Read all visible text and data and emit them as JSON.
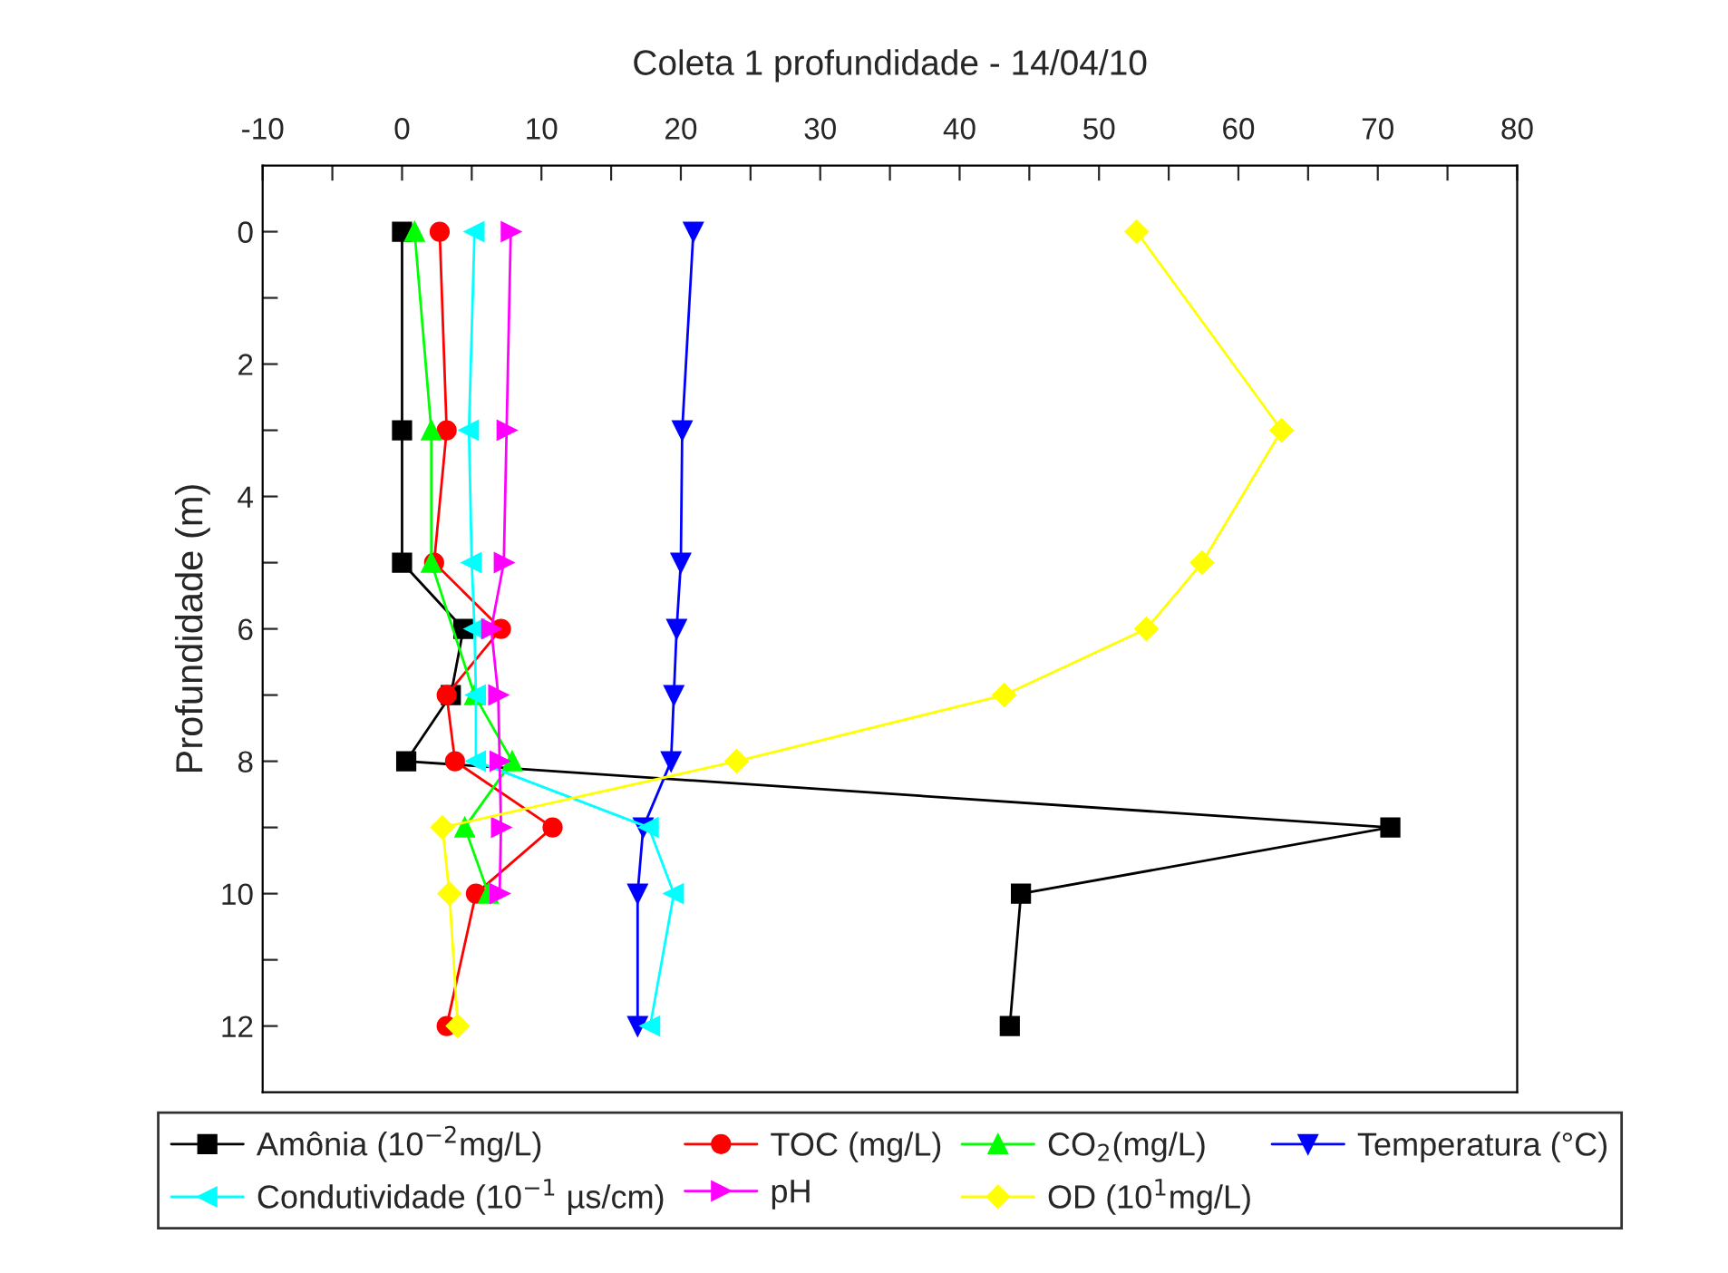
{
  "chart_data": {
    "type": "line",
    "title": "Coleta 1 profundidade - 14/04/10",
    "ylabel": "Profundidade (m)",
    "xlim": [
      -10,
      80
    ],
    "xticks": [
      -10,
      {
        "value": -5,
        "label": null
      },
      0,
      {
        "value": 5,
        "label": null
      },
      10,
      {
        "value": 15,
        "label": null
      },
      20,
      {
        "value": 25,
        "label": null
      },
      30,
      {
        "value": 35,
        "label": null
      },
      40,
      {
        "value": 45,
        "label": null
      },
      50,
      {
        "value": 55,
        "label": null
      },
      60,
      {
        "value": 65,
        "label": null
      },
      70,
      {
        "value": 75,
        "label": null
      },
      80
    ],
    "ylim": [
      13,
      -1
    ],
    "yticks": [
      0,
      {
        "value": 1,
        "label": null
      },
      2,
      {
        "value": 3,
        "label": null
      },
      4,
      {
        "value": 5,
        "label": null
      },
      6,
      {
        "value": 7,
        "label": null
      },
      8,
      {
        "value": 9,
        "label": null
      },
      10,
      {
        "value": 11,
        "label": null
      },
      12
    ],
    "grid": false,
    "legend": "bottom",
    "line_style": "solid",
    "series": [
      {
        "name": "Amônia (10$^{−2}$mg/L)",
        "color": "#000000",
        "marker": "square",
        "x": [
          0,
          0,
          0,
          4.4,
          3.5,
          0.3,
          70.9,
          44.4,
          43.6
        ],
        "values": [
          0,
          3,
          5,
          6,
          7,
          8,
          9,
          10,
          12
        ]
      },
      {
        "name": "TOC (mg/L)",
        "color": "#ff0000",
        "marker": "circle",
        "x": [
          2.7,
          3.2,
          2.3,
          7.1,
          3.2,
          3.8,
          10.8,
          5.3,
          3.2
        ],
        "values": [
          0,
          3,
          5,
          6,
          7,
          8,
          9,
          10,
          12
        ]
      },
      {
        "name": "CO$_{2}$(mg/L)",
        "color": "#00ff00",
        "marker": "triangle",
        "x": [
          0.9,
          2.1,
          2.1,
          5.2,
          7.9,
          4.5,
          6.2
        ],
        "values": [
          0,
          3,
          5,
          7,
          8,
          9,
          10
        ]
      },
      {
        "name": "Temperatura (°C)",
        "color": "#0000ff",
        "marker": "triangle-down",
        "x": [
          20.9,
          20.1,
          20.0,
          19.7,
          19.5,
          19.3,
          17.3,
          16.9,
          16.9
        ],
        "values": [
          0,
          3,
          5,
          6,
          7,
          8,
          9,
          10,
          12
        ]
      },
      {
        "name": "Condutividade (10$^{−1}$ µs/cm)",
        "color": "#00ffff",
        "marker": "triangle-left",
        "x": [
          5.2,
          4.8,
          5.0,
          5.2,
          5.3,
          5.3,
          17.7,
          19.5,
          17.8
        ],
        "values": [
          0,
          3,
          5,
          6,
          7,
          8,
          9,
          10,
          12
        ]
      },
      {
        "name": "pH",
        "color": "#ff00ff",
        "marker": "triangle-right",
        "x": [
          7.8,
          7.5,
          7.3,
          6.4,
          6.9,
          7.0,
          7.1,
          7.0
        ],
        "values": [
          0,
          3,
          5,
          6,
          7,
          8,
          9,
          10
        ]
      },
      {
        "name": "OD (10$^{1}$mg/L)",
        "color": "#ffff00",
        "marker": "diamond",
        "x": [
          52.7,
          63.1,
          57.4,
          53.4,
          43.2,
          24.0,
          2.9,
          3.4,
          4.0
        ],
        "values": [
          0,
          3,
          5,
          6,
          7,
          8,
          9,
          10,
          12
        ]
      }
    ]
  }
}
